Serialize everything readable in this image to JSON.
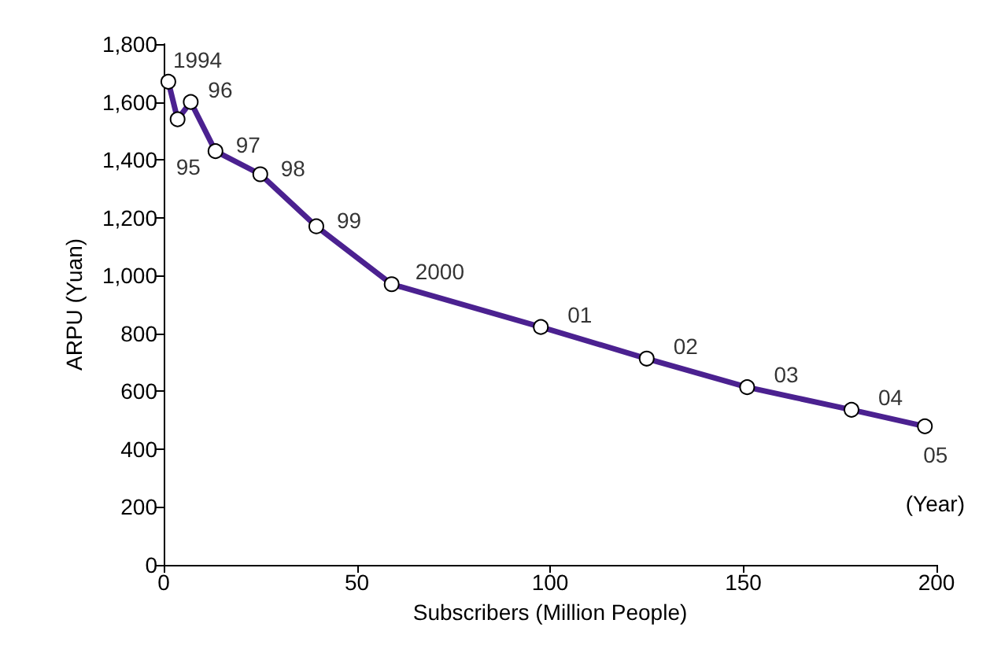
{
  "chart_data": {
    "type": "line",
    "xlabel": "Subscribers (Million People)",
    "ylabel": "ARPU (Yuan)",
    "x": [
      1.2,
      3.6,
      7,
      13.4,
      25,
      39.5,
      59,
      97.6,
      125,
      151,
      178,
      197
    ],
    "series": [
      {
        "color": "#4b2190",
        "values": [
          1670,
          1540,
          1600,
          1430,
          1350,
          1170,
          970,
          822,
          713,
          614,
          536,
          479
        ]
      }
    ],
    "xlim": [
      0,
      200
    ],
    "xticks": [
      0,
      50,
      100,
      150,
      200
    ],
    "ylim": [
      0,
      1800
    ],
    "yticks": [
      {
        "value": 0,
        "label": "0"
      },
      {
        "value": 200,
        "label": "200"
      },
      {
        "value": 400,
        "label": "400"
      },
      {
        "value": 600,
        "label": "600"
      },
      {
        "value": 800,
        "label": "800"
      },
      {
        "value": 1000,
        "label": "1,000"
      },
      {
        "value": 1200,
        "label": "1,200"
      },
      {
        "value": 1400,
        "label": "1,400"
      },
      {
        "value": 1600,
        "label": "1,600"
      },
      {
        "value": 1800,
        "label": "1,800"
      }
    ],
    "grid": false,
    "marker": "circle",
    "line_style": "solid",
    "annotations": [
      {
        "text": "1994",
        "x": 1.2,
        "y": 1670
      },
      {
        "text": "95",
        "x": 3.6,
        "y": 1540
      },
      {
        "text": "96",
        "x": 7,
        "y": 1600
      },
      {
        "text": "97",
        "x": 13.4,
        "y": 1430
      },
      {
        "text": "98",
        "x": 25,
        "y": 1350
      },
      {
        "text": "99",
        "x": 39.5,
        "y": 1170
      },
      {
        "text": "2000",
        "x": 59,
        "y": 970
      },
      {
        "text": "01",
        "x": 97.6,
        "y": 822
      },
      {
        "text": "02",
        "x": 125,
        "y": 713
      },
      {
        "text": "03",
        "x": 151,
        "y": 614
      },
      {
        "text": "04",
        "x": 178,
        "y": 536
      },
      {
        "text": "05",
        "x": 197,
        "y": 479
      },
      "(Year)"
    ]
  }
}
